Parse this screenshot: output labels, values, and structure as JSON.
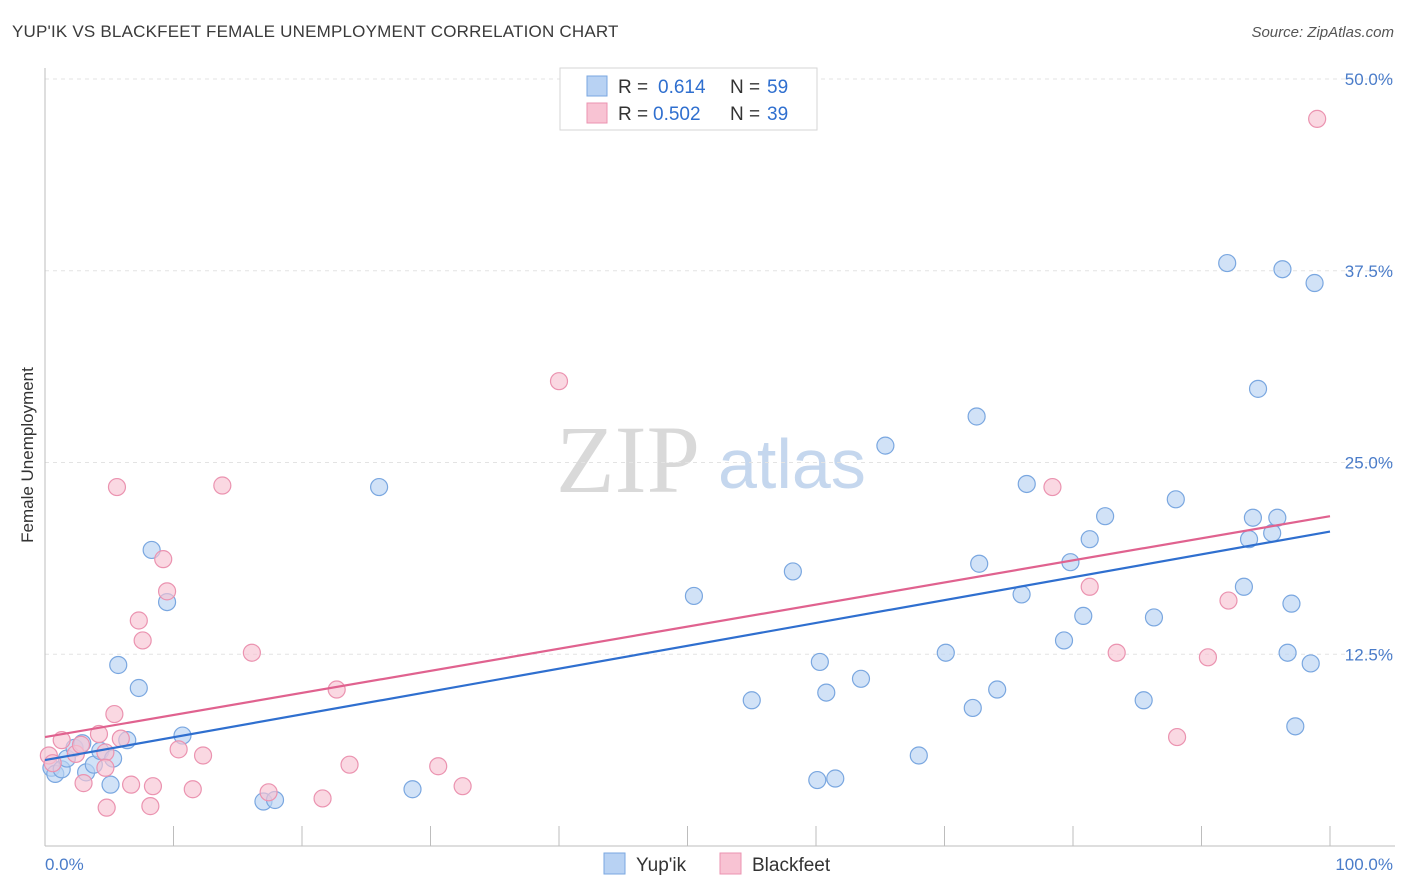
{
  "title": "YUP'IK VS BLACKFEET FEMALE UNEMPLOYMENT CORRELATION CHART",
  "source": "Source: ZipAtlas.com",
  "watermark": {
    "zip": "ZIP",
    "atlas": "atlas"
  },
  "legend": {
    "r_label": "R =",
    "n_label": "N =",
    "entries": [
      {
        "name": "Yup'ik",
        "r": "0.614",
        "n": "59"
      },
      {
        "name": "Blackfeet",
        "r": "0.502",
        "n": "39"
      }
    ]
  },
  "colors": {
    "blue_fill": "#b8d2f3",
    "blue_stroke": "#7aa7e0",
    "blue_line": "#2f6fcf",
    "pink_fill": "#f8c3d3",
    "pink_stroke": "#eb93b0",
    "pink_line": "#e0628f",
    "tick_text": "#4a7cc9"
  },
  "chart_data": {
    "type": "scatter",
    "title": "YUP'IK VS BLACKFEET FEMALE UNEMPLOYMENT CORRELATION CHART",
    "xlabel": "",
    "ylabel": "Female Unemployment",
    "xlim": [
      0,
      100
    ],
    "ylim": [
      0,
      50
    ],
    "x_tick_labels": [
      "0.0%",
      "100.0%"
    ],
    "y_ticks": [
      12.5,
      25.0,
      37.5,
      50.0
    ],
    "y_tick_labels": [
      "12.5%",
      "25.0%",
      "37.5%",
      "50.0%"
    ],
    "series": [
      {
        "name": "Yup'ik",
        "r": 0.614,
        "n": 59,
        "trend": {
          "x": [
            0,
            100
          ],
          "y": [
            5.6,
            20.5
          ]
        },
        "points": [
          [
            0.5,
            5.1
          ],
          [
            0.8,
            4.7
          ],
          [
            1.3,
            5.0
          ],
          [
            1.7,
            5.7
          ],
          [
            2.3,
            6.4
          ],
          [
            2.9,
            6.7
          ],
          [
            3.2,
            4.8
          ],
          [
            3.8,
            5.3
          ],
          [
            4.3,
            6.2
          ],
          [
            5.1,
            4.0
          ],
          [
            5.3,
            5.7
          ],
          [
            5.7,
            11.8
          ],
          [
            6.4,
            6.9
          ],
          [
            7.3,
            10.3
          ],
          [
            8.3,
            19.3
          ],
          [
            9.5,
            15.9
          ],
          [
            10.7,
            7.2
          ],
          [
            17.0,
            2.9
          ],
          [
            17.9,
            3.0
          ],
          [
            26.0,
            23.4
          ],
          [
            28.6,
            3.7
          ],
          [
            50.5,
            16.3
          ],
          [
            55.0,
            9.5
          ],
          [
            58.2,
            17.9
          ],
          [
            60.1,
            4.3
          ],
          [
            60.3,
            12.0
          ],
          [
            60.8,
            10.0
          ],
          [
            61.5,
            4.4
          ],
          [
            63.5,
            10.9
          ],
          [
            65.4,
            26.1
          ],
          [
            68.0,
            5.9
          ],
          [
            70.1,
            12.6
          ],
          [
            72.5,
            28.0
          ],
          [
            72.7,
            18.4
          ],
          [
            72.2,
            9.0
          ],
          [
            74.1,
            10.2
          ],
          [
            76.0,
            16.4
          ],
          [
            76.4,
            23.6
          ],
          [
            79.3,
            13.4
          ],
          [
            79.8,
            18.5
          ],
          [
            80.8,
            15.0
          ],
          [
            81.3,
            20.0
          ],
          [
            82.5,
            21.5
          ],
          [
            85.5,
            9.5
          ],
          [
            86.3,
            14.9
          ],
          [
            88.0,
            22.6
          ],
          [
            92.0,
            38.0
          ],
          [
            93.3,
            16.9
          ],
          [
            93.7,
            20.0
          ],
          [
            94.0,
            21.4
          ],
          [
            94.4,
            29.8
          ],
          [
            95.5,
            20.4
          ],
          [
            95.9,
            21.4
          ],
          [
            96.3,
            37.6
          ],
          [
            96.7,
            12.6
          ],
          [
            97.0,
            15.8
          ],
          [
            97.3,
            7.8
          ],
          [
            98.5,
            11.9
          ],
          [
            98.8,
            36.7
          ]
        ]
      },
      {
        "name": "Blackfeet",
        "r": 0.502,
        "n": 39,
        "trend": {
          "x": [
            0,
            100
          ],
          "y": [
            7.1,
            21.5
          ]
        },
        "points": [
          [
            0.3,
            5.9
          ],
          [
            0.6,
            5.4
          ],
          [
            1.3,
            6.9
          ],
          [
            2.4,
            6.0
          ],
          [
            2.8,
            6.6
          ],
          [
            3.0,
            4.1
          ],
          [
            4.2,
            7.3
          ],
          [
            4.7,
            6.1
          ],
          [
            4.7,
            5.1
          ],
          [
            4.8,
            2.5
          ],
          [
            5.4,
            8.6
          ],
          [
            5.6,
            23.4
          ],
          [
            5.9,
            7.0
          ],
          [
            6.7,
            4.0
          ],
          [
            7.3,
            14.7
          ],
          [
            7.6,
            13.4
          ],
          [
            8.2,
            2.6
          ],
          [
            8.4,
            3.9
          ],
          [
            9.2,
            18.7
          ],
          [
            9.5,
            16.6
          ],
          [
            10.4,
            6.3
          ],
          [
            11.5,
            3.7
          ],
          [
            12.3,
            5.9
          ],
          [
            13.8,
            23.5
          ],
          [
            16.1,
            12.6
          ],
          [
            17.4,
            3.5
          ],
          [
            21.6,
            3.1
          ],
          [
            22.7,
            10.2
          ],
          [
            23.7,
            5.3
          ],
          [
            30.6,
            5.2
          ],
          [
            32.5,
            3.9
          ],
          [
            40.0,
            30.3
          ],
          [
            78.4,
            23.4
          ],
          [
            81.3,
            16.9
          ],
          [
            83.4,
            12.6
          ],
          [
            88.1,
            7.1
          ],
          [
            90.5,
            12.3
          ],
          [
            92.1,
            16.0
          ],
          [
            99.0,
            47.4
          ]
        ]
      }
    ]
  },
  "bottom_legend": [
    "Yup'ik",
    "Blackfeet"
  ]
}
